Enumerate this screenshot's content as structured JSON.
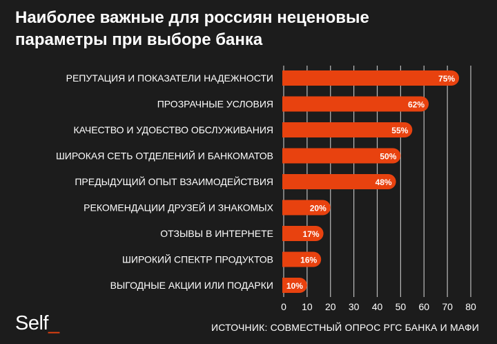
{
  "header": {
    "title_line1": "Наиболее важные для россиян неценовые",
    "title_line2": "параметры при выборе банка"
  },
  "footer": {
    "logo_text": "Self",
    "logo_cursor": "_",
    "source": "ИСТОЧНИК: СОВМЕСТНЫЙ ОПРОС РГС БАНКА И МАФИ"
  },
  "colors": {
    "background": "#1c1c1c",
    "bar": "#e8420f",
    "grid": "#bdbdbd",
    "text": "#ffffff"
  },
  "chart_data": {
    "type": "bar",
    "orientation": "horizontal",
    "title": "Наиболее важные для россиян неценовые параметры при выборе банка",
    "categories": [
      "РЕПУТАЦИЯ И ПОКАЗАТЕЛИ НАДЕЖНОСТИ",
      "ПРОЗРАЧНЫЕ УСЛОВИЯ",
      "КАЧЕСТВО И УДОБСТВО ОБСЛУЖИВАНИЯ",
      "ШИРОКАЯ СЕТЬ ОТДЕЛЕНИЙ И БАНКОМАТОВ",
      "ПРЕДЫДУЩИЙ ОПЫТ ВЗАИМОДЕЙСТВИЯ",
      "РЕКОМЕНДАЦИИ ДРУЗЕЙ И ЗНАКОМЫХ",
      "ОТЗЫВЫ В ИНТЕРНЕТЕ",
      "ШИРОКИЙ СПЕКТР ПРОДУКТОВ",
      "ВЫГОДНЫЕ АКЦИИ ИЛИ ПОДАРКИ"
    ],
    "values": [
      75,
      62,
      55,
      50,
      48,
      20,
      17,
      16,
      10
    ],
    "data_labels": [
      "75%",
      "62%",
      "55%",
      "50%",
      "48%",
      "20%",
      "17%",
      "16%",
      "10%"
    ],
    "xlim": [
      0,
      80
    ],
    "xticks": [
      "0",
      "10",
      "20",
      "30",
      "40",
      "50",
      "60",
      "70",
      "80"
    ],
    "xlabel": "",
    "ylabel": "",
    "grid": "vertical",
    "legend": "none"
  }
}
